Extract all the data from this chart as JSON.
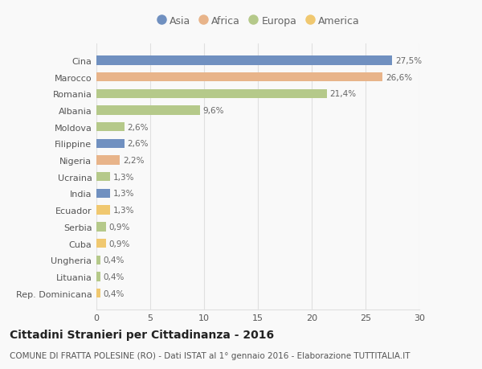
{
  "countries": [
    "Cina",
    "Marocco",
    "Romania",
    "Albania",
    "Moldova",
    "Filippine",
    "Nigeria",
    "Ucraina",
    "India",
    "Ecuador",
    "Serbia",
    "Cuba",
    "Ungheria",
    "Lituania",
    "Rep. Dominicana"
  ],
  "values": [
    27.5,
    26.6,
    21.4,
    9.6,
    2.6,
    2.6,
    2.2,
    1.3,
    1.3,
    1.3,
    0.9,
    0.9,
    0.4,
    0.4,
    0.4
  ],
  "labels": [
    "27,5%",
    "26,6%",
    "21,4%",
    "9,6%",
    "2,6%",
    "2,6%",
    "2,2%",
    "1,3%",
    "1,3%",
    "1,3%",
    "0,9%",
    "0,9%",
    "0,4%",
    "0,4%",
    "0,4%"
  ],
  "continents": [
    "Asia",
    "Africa",
    "Europa",
    "Europa",
    "Europa",
    "Asia",
    "Africa",
    "Europa",
    "Asia",
    "America",
    "Europa",
    "America",
    "Europa",
    "Europa",
    "America"
  ],
  "continent_colors": {
    "Asia": "#7090c0",
    "Africa": "#e8b48a",
    "Europa": "#b5c98a",
    "America": "#f0c870"
  },
  "legend_order": [
    "Asia",
    "Africa",
    "Europa",
    "America"
  ],
  "title": "Cittadini Stranieri per Cittadinanza - 2016",
  "subtitle": "COMUNE DI FRATTA POLESINE (RO) - Dati ISTAT al 1° gennaio 2016 - Elaborazione TUTTITALIA.IT",
  "xlim": [
    0,
    30
  ],
  "xticks": [
    0,
    5,
    10,
    15,
    20,
    25,
    30
  ],
  "background_color": "#f9f9f9",
  "grid_color": "#e0e0e0",
  "bar_height": 0.55,
  "title_fontsize": 10,
  "subtitle_fontsize": 7.5,
  "label_fontsize": 7.5,
  "tick_fontsize": 8,
  "legend_fontsize": 9
}
